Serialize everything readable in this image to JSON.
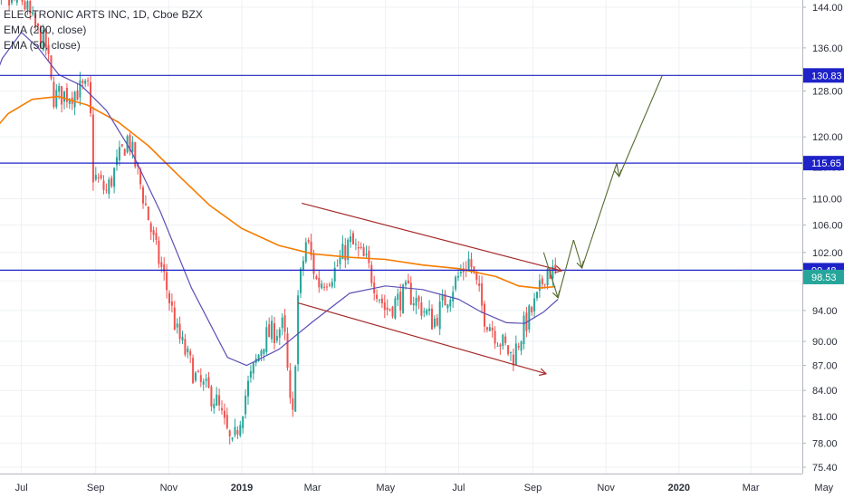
{
  "chart_data": {
    "type": "candlestick",
    "title": "ELECTRONIC ARTS INC, 1D, Cboe BZX",
    "indicators": [
      "EMA (200, close)",
      "EMA (50, close)"
    ],
    "x_tick_labels": [
      "Jul",
      "Sep",
      "Nov",
      "2019",
      "Mar",
      "May",
      "Jul",
      "Sep",
      "Nov",
      "2020",
      "Mar",
      "May"
    ],
    "y_tick_labels": [
      "144.00",
      "136.00",
      "128.00",
      "120.00",
      "115.00",
      "110.00",
      "106.00",
      "102.00",
      "98.00",
      "94.00",
      "90.00",
      "87.00",
      "84.00",
      "81.00",
      "78.00",
      "75.40"
    ],
    "y_ticks": [
      144,
      136,
      128,
      120,
      115,
      110,
      106,
      102,
      98,
      94,
      90,
      87,
      84,
      81,
      78,
      75.4
    ],
    "y_scale": "log",
    "ylim": [
      74.5,
      148
    ],
    "price_labels": [
      {
        "value": 130.83,
        "text": "130.83",
        "color": "#1e22c8"
      },
      {
        "value": 115.65,
        "text": "115.65",
        "color": "#1e22c8"
      },
      {
        "value": 99.48,
        "text": "99.48",
        "color": "#1e22c8"
      },
      {
        "value": 98.53,
        "text": "98.53",
        "color": "#26a69a"
      }
    ],
    "horizontal_lines": [
      130.83,
      115.65,
      99.48
    ],
    "ema200": [
      {
        "date": "2018-06-01",
        "value": 119.5
      },
      {
        "date": "2018-06-20",
        "value": 124
      },
      {
        "date": "2018-07-10",
        "value": 126.5
      },
      {
        "date": "2018-08-01",
        "value": 127
      },
      {
        "date": "2018-08-25",
        "value": 125.5
      },
      {
        "date": "2018-09-20",
        "value": 122.5
      },
      {
        "date": "2018-10-15",
        "value": 118.5
      },
      {
        "date": "2018-11-10",
        "value": 113.5
      },
      {
        "date": "2018-12-05",
        "value": 109
      },
      {
        "date": "2019-01-01",
        "value": 105.5
      },
      {
        "date": "2019-02-01",
        "value": 103
      },
      {
        "date": "2019-03-01",
        "value": 101.8
      },
      {
        "date": "2019-04-01",
        "value": 101.3
      },
      {
        "date": "2019-05-01",
        "value": 101
      }
    ],
    "ema200_b": [
      {
        "date": "2019-06-01",
        "value": 100.2
      },
      {
        "date": "2019-07-01",
        "value": 99.7
      },
      {
        "date": "2019-08-01",
        "value": 98.6
      },
      {
        "date": "2019-08-20",
        "value": 97.3
      },
      {
        "date": "2019-09-05",
        "value": 97
      },
      {
        "date": "2019-09-20",
        "value": 97.2
      }
    ],
    "ema50": [
      {
        "date": "2018-06-01",
        "value": 126
      },
      {
        "date": "2018-06-15",
        "value": 134
      },
      {
        "date": "2018-07-01",
        "value": 139
      },
      {
        "date": "2018-07-15",
        "value": 136
      },
      {
        "date": "2018-08-01",
        "value": 131
      },
      {
        "date": "2018-08-20",
        "value": 129
      },
      {
        "date": "2018-09-10",
        "value": 124.5
      },
      {
        "date": "2018-10-01",
        "value": 117.5
      },
      {
        "date": "2018-10-25",
        "value": 108
      },
      {
        "date": "2018-11-20",
        "value": 97
      },
      {
        "date": "2018-12-20",
        "value": 88
      },
      {
        "date": "2019-01-05",
        "value": 87
      },
      {
        "date": "2019-02-01",
        "value": 89
      },
      {
        "date": "2019-03-01",
        "value": 92.5
      },
      {
        "date": "2019-04-01",
        "value": 96.3
      },
      {
        "date": "2019-05-01",
        "value": 97.3
      },
      {
        "date": "2019-06-01",
        "value": 96.8
      },
      {
        "date": "2019-07-01",
        "value": 95.5
      },
      {
        "date": "2019-07-20",
        "value": 93.8
      },
      {
        "date": "2019-08-10",
        "value": 92.4
      },
      {
        "date": "2019-08-25",
        "value": 92.3
      },
      {
        "date": "2019-09-10",
        "value": 93.8
      },
      {
        "date": "2019-09-22",
        "value": 95.5
      }
    ],
    "channel_upper": [
      {
        "date": "2019-02-20",
        "value": 109.3
      },
      {
        "date": "2019-09-25",
        "value": 99.4
      }
    ],
    "channel_lower": [
      {
        "date": "2019-02-17",
        "value": 95
      },
      {
        "date": "2019-09-12",
        "value": 86
      }
    ],
    "projection_path": [
      {
        "date": "2019-09-10",
        "value": 102
      },
      {
        "date": "2019-09-22",
        "value": 95.7
      },
      {
        "date": "2019-10-05",
        "value": 103.8
      },
      {
        "date": "2019-10-12",
        "value": 99.8
      },
      {
        "date": "2019-11-10",
        "value": 115.6
      },
      {
        "date": "2019-11-12",
        "value": 113.5
      },
      {
        "date": "2019-12-18",
        "value": 130.8
      }
    ],
    "price_path": [
      {
        "date": "2018-06-01",
        "value": 140
      },
      {
        "date": "2018-06-15",
        "value": 144
      },
      {
        "date": "2018-07-01",
        "value": 146
      },
      {
        "date": "2018-07-12",
        "value": 140
      },
      {
        "date": "2018-07-22",
        "value": 136
      },
      {
        "date": "2018-07-27",
        "value": 127
      },
      {
        "date": "2018-08-10",
        "value": 127.5
      },
      {
        "date": "2018-08-20",
        "value": 128.3
      },
      {
        "date": "2018-08-27",
        "value": 128
      },
      {
        "date": "2018-08-29",
        "value": 114
      },
      {
        "date": "2018-09-10",
        "value": 111
      },
      {
        "date": "2018-09-20",
        "value": 116
      },
      {
        "date": "2018-09-28",
        "value": 120
      },
      {
        "date": "2018-10-10",
        "value": 111
      },
      {
        "date": "2018-10-20",
        "value": 103
      },
      {
        "date": "2018-10-28",
        "value": 98.5
      },
      {
        "date": "2018-11-08",
        "value": 91
      },
      {
        "date": "2018-11-25",
        "value": 85
      },
      {
        "date": "2018-12-10",
        "value": 83
      },
      {
        "date": "2018-12-24",
        "value": 77.3
      },
      {
        "date": "2019-01-05",
        "value": 84
      },
      {
        "date": "2019-01-20",
        "value": 90.5
      },
      {
        "date": "2019-02-05",
        "value": 92
      },
      {
        "date": "2019-02-12",
        "value": 79
      },
      {
        "date": "2019-02-17",
        "value": 96
      },
      {
        "date": "2019-02-24",
        "value": 104
      },
      {
        "date": "2019-03-05",
        "value": 97.5
      },
      {
        "date": "2019-03-20",
        "value": 99.5
      },
      {
        "date": "2019-04-01",
        "value": 103.5
      },
      {
        "date": "2019-04-15",
        "value": 100.5
      },
      {
        "date": "2019-05-01",
        "value": 94
      },
      {
        "date": "2019-05-20",
        "value": 96.5
      },
      {
        "date": "2019-06-10",
        "value": 92.5
      },
      {
        "date": "2019-06-25",
        "value": 97
      },
      {
        "date": "2019-07-10",
        "value": 101
      },
      {
        "date": "2019-07-22",
        "value": 93.5
      },
      {
        "date": "2019-08-05",
        "value": 90
      },
      {
        "date": "2019-08-15",
        "value": 88
      },
      {
        "date": "2019-08-25",
        "value": 92
      },
      {
        "date": "2019-09-05",
        "value": 95.5
      },
      {
        "date": "2019-09-12",
        "value": 99.8
      },
      {
        "date": "2019-09-22",
        "value": 98.5
      }
    ]
  },
  "colors": {
    "up": "#26a69a",
    "down": "#ef5350",
    "ema200": "#f57c00",
    "ema50": "#5b4fb5",
    "hline": "#1e22c8",
    "channel": "#a52a2a",
    "projection": "#556b2f",
    "grid": "#eef0f3",
    "axis_text": "#2a2e39"
  }
}
